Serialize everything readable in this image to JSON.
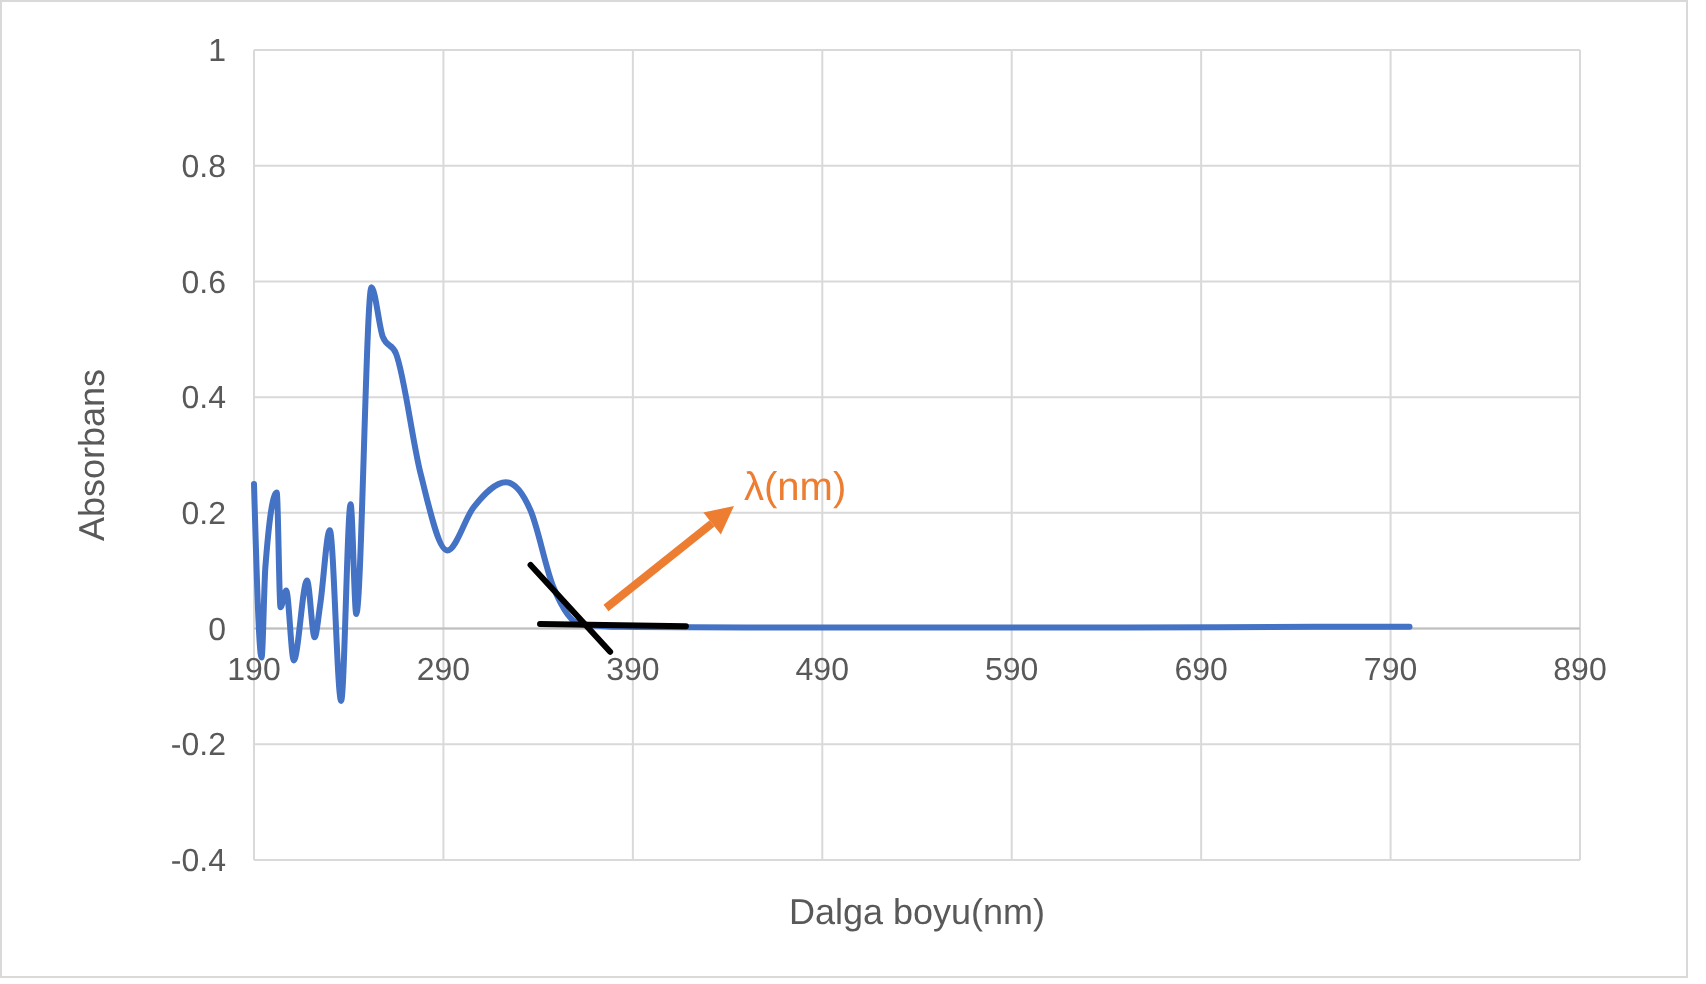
{
  "chart_data": {
    "type": "line",
    "xlabel": "Dalga boyu(nm)",
    "ylabel": "Absorbans",
    "xlim": [
      190,
      890
    ],
    "xticks": [
      190,
      290,
      390,
      490,
      590,
      690,
      790,
      890
    ],
    "ylim": [
      -0.4,
      1
    ],
    "yticks": [
      -0.4,
      -0.2,
      0,
      0.2,
      0.4,
      0.6,
      0.8,
      1
    ],
    "grid": true,
    "series": [
      {
        "color": "#4472c4",
        "x": [
          190,
          194,
          196,
          202,
          204,
          207,
          211,
          218,
          222,
          225,
          230,
          236,
          241,
          244,
          252,
          258,
          265,
          278,
          292,
          306,
          323,
          336,
          348,
          362,
          385,
          450,
          550,
          650,
          750,
          800
        ],
        "values": [
          0.25,
          -0.05,
          0.106,
          0.235,
          0.037,
          0.066,
          -0.055,
          0.083,
          -0.015,
          0.043,
          0.17,
          -0.125,
          0.215,
          0.025,
          0.59,
          0.504,
          0.475,
          0.267,
          0.135,
          0.21,
          0.253,
          0.204,
          0.072,
          0.008,
          0.003,
          0.002,
          0.002,
          0.002,
          0.003,
          0.003
        ]
      },
      {
        "color": "#000000",
        "x": [
          341,
          418
        ],
        "values": [
          0.008,
          0.004
        ]
      },
      {
        "color": "#000000",
        "x": [
          336,
          378
        ],
        "values": [
          0.11,
          -0.04
        ]
      }
    ],
    "annotations": [
      "λ(nm)"
    ]
  }
}
